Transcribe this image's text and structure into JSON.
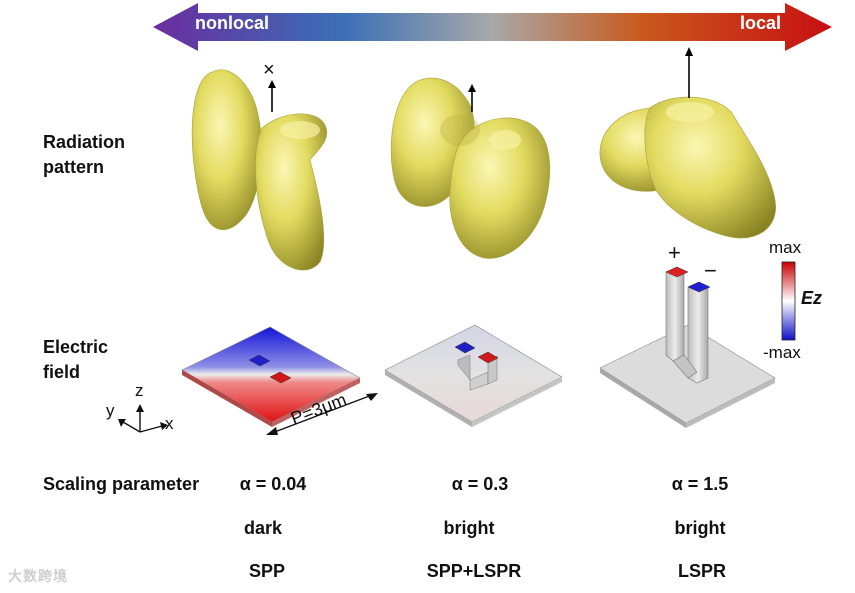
{
  "arrow": {
    "left_label": "nonlocal",
    "right_label": "local",
    "colors": [
      "#6a2d9f",
      "#3b6fb6",
      "#a8a8a8",
      "#c85a1e",
      "#c80f12"
    ]
  },
  "rows": {
    "radiation": "Radiation pattern",
    "field": "Electric field",
    "scaling": "Scaling parameter"
  },
  "columns": [
    {
      "alpha": "α = 0.04",
      "brightness": "dark",
      "mode": "SPP"
    },
    {
      "alpha": "α = 0.3",
      "brightness": "bright",
      "mode": "SPP+LSPR"
    },
    {
      "alpha": "α = 1.5",
      "brightness": "bright",
      "mode": "LSPR"
    }
  ],
  "colorbar": {
    "max": "max",
    "min": "-max",
    "quantity": "Ez",
    "colors": [
      "#c80000",
      "#ffffff",
      "#1010c8"
    ]
  },
  "axes": {
    "x": "x",
    "y": "y",
    "z": "z"
  },
  "period": "P=3μm",
  "dipole_marker": "×",
  "charges": {
    "plus": "+",
    "minus": "−"
  },
  "pattern_color": "#e0da5a",
  "watermark": "大数跨境"
}
